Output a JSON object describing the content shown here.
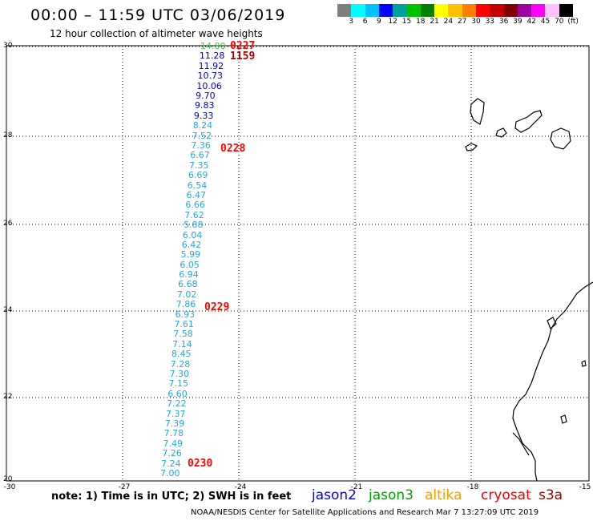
{
  "title": "00:00 – 11:59 UTC 03/06/2019",
  "subtitle": "12 hour collection of altimeter wave heights",
  "legend": {
    "colors": [
      "#7f7f7f",
      "#00ffff",
      "#00c0ff",
      "#0000ff",
      "#00a0a0",
      "#00c000",
      "#008000",
      "#ffff00",
      "#ffc000",
      "#ff8000",
      "#ff0000",
      "#c00000",
      "#800000",
      "#a000a0",
      "#ff00ff",
      "#ffc0ff",
      "#000000"
    ],
    "labels": [
      "3",
      "6",
      "9",
      "12",
      "15",
      "18",
      "21",
      "24",
      "27",
      "30",
      "33",
      "36",
      "39",
      "42",
      "45",
      "70",
      "(ft)"
    ]
  },
  "axes": {
    "lat_labels": [
      "30",
      "28",
      "26",
      "24",
      "22",
      "20"
    ],
    "lon_labels": [
      "-30",
      "-27",
      "-24",
      "-21",
      "-18",
      "-15"
    ]
  },
  "track_values": [
    {
      "v": "14.80",
      "c": "#44cc44"
    },
    {
      "v": "11.28",
      "c": "#0000cc"
    },
    {
      "v": "11.92",
      "c": "#0000cc"
    },
    {
      "v": "10.73",
      "c": "#0000cc"
    },
    {
      "v": "10.06",
      "c": "#0000cc"
    },
    {
      "v": "9.70",
      "c": "#0000cc"
    },
    {
      "v": "9.83",
      "c": "#0000cc"
    },
    {
      "v": "9.33",
      "c": "#0000cc"
    },
    {
      "v": "8.24",
      "c": "#22aadd"
    },
    {
      "v": "7.52",
      "c": "#22aadd"
    },
    {
      "v": "7.36",
      "c": "#22aadd"
    },
    {
      "v": "6.67",
      "c": "#22aadd"
    },
    {
      "v": "7.35",
      "c": "#22aadd"
    },
    {
      "v": "6.69",
      "c": "#22aadd"
    },
    {
      "v": "6.54",
      "c": "#22aadd"
    },
    {
      "v": "6.47",
      "c": "#22aadd"
    },
    {
      "v": "6.66",
      "c": "#22aadd"
    },
    {
      "v": "7.62",
      "c": "#22aadd"
    },
    {
      "v": "5.88",
      "c": "#22aadd"
    },
    {
      "v": "6.04",
      "c": "#22aadd"
    },
    {
      "v": "6.42",
      "c": "#22aadd"
    },
    {
      "v": "5.99",
      "c": "#22aadd"
    },
    {
      "v": "6.05",
      "c": "#22aadd"
    },
    {
      "v": "6.94",
      "c": "#22aadd"
    },
    {
      "v": "6.68",
      "c": "#22aadd"
    },
    {
      "v": "7.02",
      "c": "#22aadd"
    },
    {
      "v": "7.86",
      "c": "#22aadd"
    },
    {
      "v": "6.93",
      "c": "#22aadd"
    },
    {
      "v": "7.61",
      "c": "#22aadd"
    },
    {
      "v": "7.58",
      "c": "#22aadd"
    },
    {
      "v": "7.14",
      "c": "#22aadd"
    },
    {
      "v": "8.45",
      "c": "#22aadd"
    },
    {
      "v": "7.28",
      "c": "#22aadd"
    },
    {
      "v": "7.30",
      "c": "#22aadd"
    },
    {
      "v": "7.15",
      "c": "#22aadd"
    },
    {
      "v": "6.60",
      "c": "#22aadd"
    },
    {
      "v": "7.22",
      "c": "#22aadd"
    },
    {
      "v": "7.37",
      "c": "#22aadd"
    },
    {
      "v": "7.39",
      "c": "#22aadd"
    },
    {
      "v": "7.78",
      "c": "#22aadd"
    },
    {
      "v": "7.49",
      "c": "#22aadd"
    },
    {
      "v": "7.26",
      "c": "#22aadd"
    },
    {
      "v": "7.24",
      "c": "#22aadd"
    },
    {
      "v": "7.00",
      "c": "#22aadd"
    }
  ],
  "time_labels": [
    {
      "t": "0227",
      "c": "#ff0000"
    },
    {
      "t": "1159",
      "c": "#aa0000"
    },
    {
      "t": "0228",
      "c": "#ff0000"
    },
    {
      "t": "0229",
      "c": "#ff0000"
    },
    {
      "t": "0230",
      "c": "#ff0000"
    }
  ],
  "note": "note: 1) Time is in UTC; 2) SWH is in feet",
  "satellites": [
    {
      "name": "jason2",
      "color": "#0000ff"
    },
    {
      "name": "jason3",
      "color": "#00a000"
    },
    {
      "name": "altika",
      "color": "#ff9900"
    },
    {
      "name": "cryosat",
      "color": "#ee0000"
    },
    {
      "name": "s3a",
      "color": "#990000"
    }
  ],
  "credit": "NOAA/NESDIS Center for Satellite Applications and Research   Mar  7 13:27:09 UTC 2019"
}
